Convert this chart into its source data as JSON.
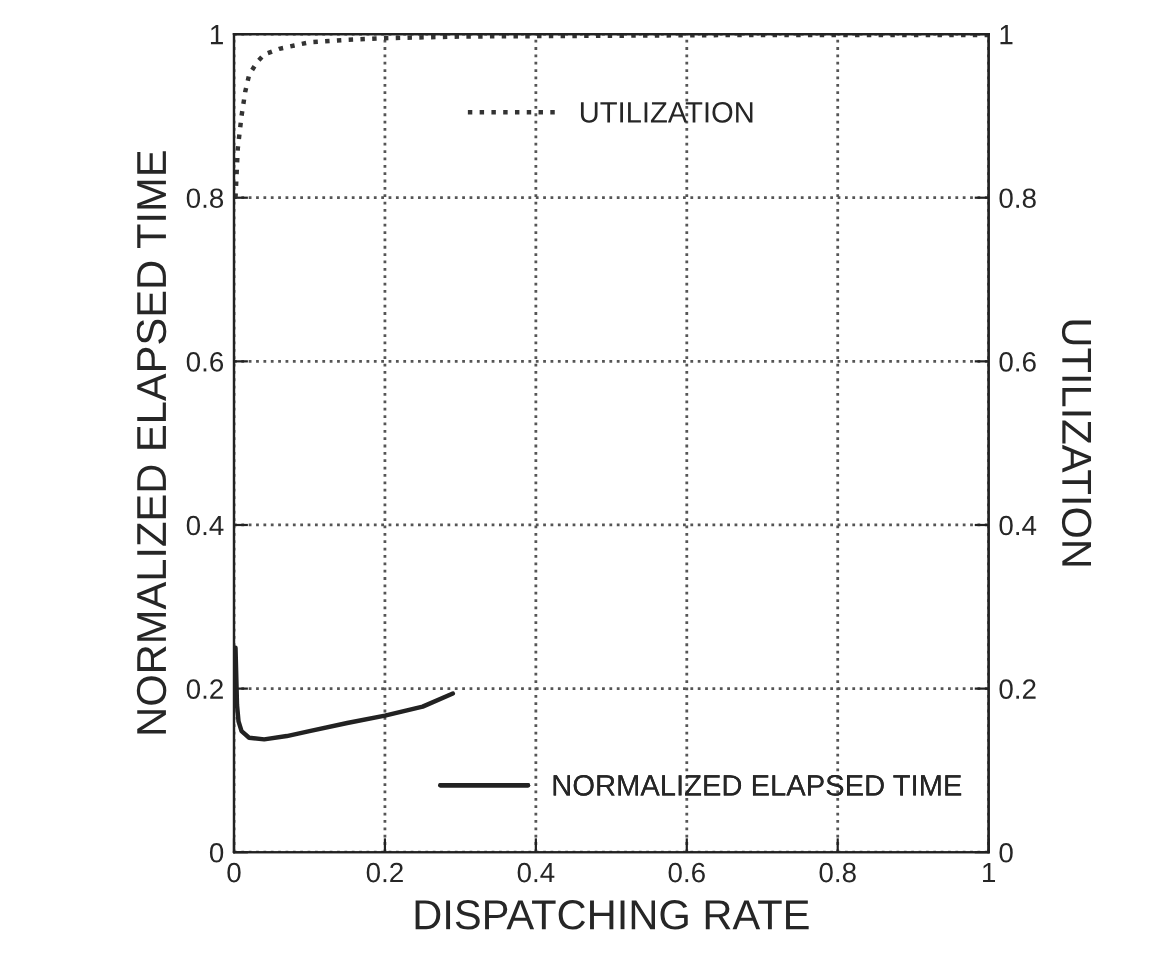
{
  "chart_data": {
    "type": "line",
    "xlabel": "DISPATCHING RATE",
    "ylabel": "NORMALIZED ELAPSED TIME",
    "y2label": "UTILIZATION",
    "xlim": [
      0,
      1
    ],
    "xticks": [
      0,
      0.2,
      0.4,
      0.6,
      0.8,
      1
    ],
    "ylim": [
      0,
      1
    ],
    "yticks": [
      0,
      0.2,
      0.4,
      0.6,
      0.8,
      1
    ],
    "y2lim": [
      0,
      1
    ],
    "y2ticks": [
      0,
      0.2,
      0.4,
      0.6,
      0.8,
      1
    ],
    "grid": true,
    "legend": "bottom right",
    "series": [
      {
        "name": "UTILIZATION",
        "color": "#333333",
        "axis": "y2",
        "line_style": "dotted",
        "x": [
          0.002,
          0.005,
          0.01,
          0.015,
          0.02,
          0.03,
          0.04,
          0.06,
          0.08,
          0.1,
          0.15,
          0.2,
          0.3,
          0.5,
          0.7,
          1.0
        ],
        "values": [
          0.8,
          0.86,
          0.9,
          0.93,
          0.95,
          0.965,
          0.975,
          0.982,
          0.986,
          0.99,
          0.993,
          0.995,
          0.997,
          0.998,
          0.999,
          0.999
        ]
      },
      {
        "name": "NORMALIZED ELAPSED TIME",
        "color": "#222222",
        "axis": "y",
        "line_style": "solid",
        "x": [
          0.002,
          0.004,
          0.006,
          0.01,
          0.02,
          0.04,
          0.07,
          0.1,
          0.15,
          0.2,
          0.25,
          0.29
        ],
        "values": [
          0.25,
          0.18,
          0.16,
          0.148,
          0.14,
          0.138,
          0.142,
          0.148,
          0.158,
          0.167,
          0.178,
          0.194
        ]
      }
    ]
  }
}
